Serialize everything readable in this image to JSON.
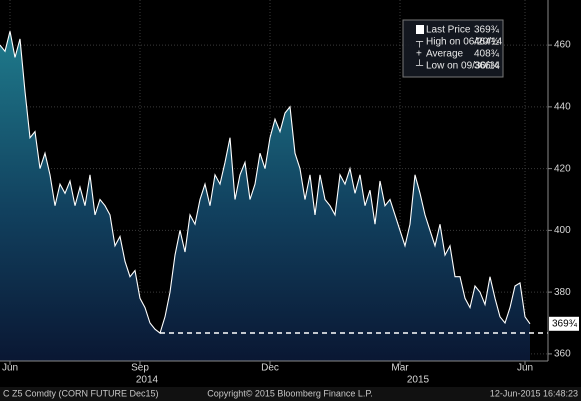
{
  "chart_data": {
    "type": "area",
    "x": [
      0,
      1,
      2,
      3,
      4,
      5,
      6,
      7,
      8,
      9,
      10,
      11,
      12,
      13,
      14,
      15,
      16,
      17,
      18,
      19,
      20,
      21,
      22,
      23,
      24,
      25,
      26,
      27,
      28,
      29,
      30,
      31,
      32,
      33,
      34,
      35,
      36,
      37,
      38,
      39,
      40,
      41,
      42,
      43,
      44,
      45,
      46,
      47,
      48,
      49,
      50,
      51,
      52,
      53,
      54,
      55,
      56,
      57,
      58,
      59,
      60,
      61,
      62,
      63,
      64,
      65,
      66,
      67,
      68,
      69,
      70,
      71,
      72,
      73,
      74,
      75,
      76,
      77,
      78,
      79,
      80,
      81,
      82,
      83,
      84,
      85,
      86,
      87,
      88,
      89,
      90,
      91,
      92,
      93,
      94,
      95,
      96,
      97,
      98,
      99,
      100,
      101,
      102,
      103,
      104,
      105,
      106
    ],
    "series": [
      {
        "name": "Last Price",
        "color": "#ffffff",
        "values": [
          460,
          458,
          464.5,
          456,
          462,
          445,
          430,
          432,
          420,
          425,
          418,
          408,
          415,
          412,
          416,
          408,
          414,
          408,
          418,
          405,
          410,
          408,
          405,
          395,
          398,
          390,
          385,
          387,
          378,
          375,
          370,
          368,
          366.75,
          372,
          380,
          392,
          400,
          393,
          405,
          402,
          410,
          415,
          408,
          418,
          415,
          422,
          430,
          410,
          418,
          422,
          410,
          415,
          425,
          420,
          430,
          436,
          432,
          438,
          440,
          425,
          420,
          410,
          418,
          405,
          418,
          410,
          408,
          405,
          418,
          415,
          420,
          412,
          418,
          408,
          413,
          402,
          416,
          408,
          410,
          405,
          400,
          395,
          402,
          418,
          412,
          405,
          400,
          395,
          402,
          392,
          395,
          385,
          385,
          378,
          375,
          382,
          380,
          376,
          385,
          378,
          372,
          370,
          375,
          382,
          383,
          372,
          369.75
        ]
      }
    ],
    "xlim": [
      0,
      109.6
    ],
    "xticks": [
      {
        "value": 2,
        "label": "Jun"
      },
      {
        "value": 28,
        "label": "Sep"
      },
      {
        "value": 54,
        "label": "Dec"
      },
      {
        "value": 80,
        "label": "Mar"
      },
      {
        "value": 105,
        "label": "Jun"
      }
    ],
    "year_labels": [
      {
        "value": 29.4,
        "label": "2014"
      },
      {
        "value": 83.6,
        "label": "2015"
      }
    ],
    "ylim": [
      357.7,
      474.6
    ],
    "yticks": [
      360,
      380,
      400,
      420,
      440,
      460
    ],
    "legend": [
      {
        "label": "Last Price",
        "value": 369.75,
        "value_label": "369¾"
      },
      {
        "label": "High on 06/20/14",
        "value": 464.5,
        "value_label": "464½"
      },
      {
        "label": "Average",
        "value": 408.75,
        "value_label": "408¾"
      },
      {
        "label": "Low on 09/30/14",
        "value": 366.75,
        "value_label": "366¾"
      }
    ],
    "footer": {
      "left": "C Z5 Comdty (CORN FUTURE    Dec15)",
      "center": "Copyright© 2015 Bloomberg Finance L.P.",
      "right": "12-Jun-2015 16:48:23"
    }
  }
}
